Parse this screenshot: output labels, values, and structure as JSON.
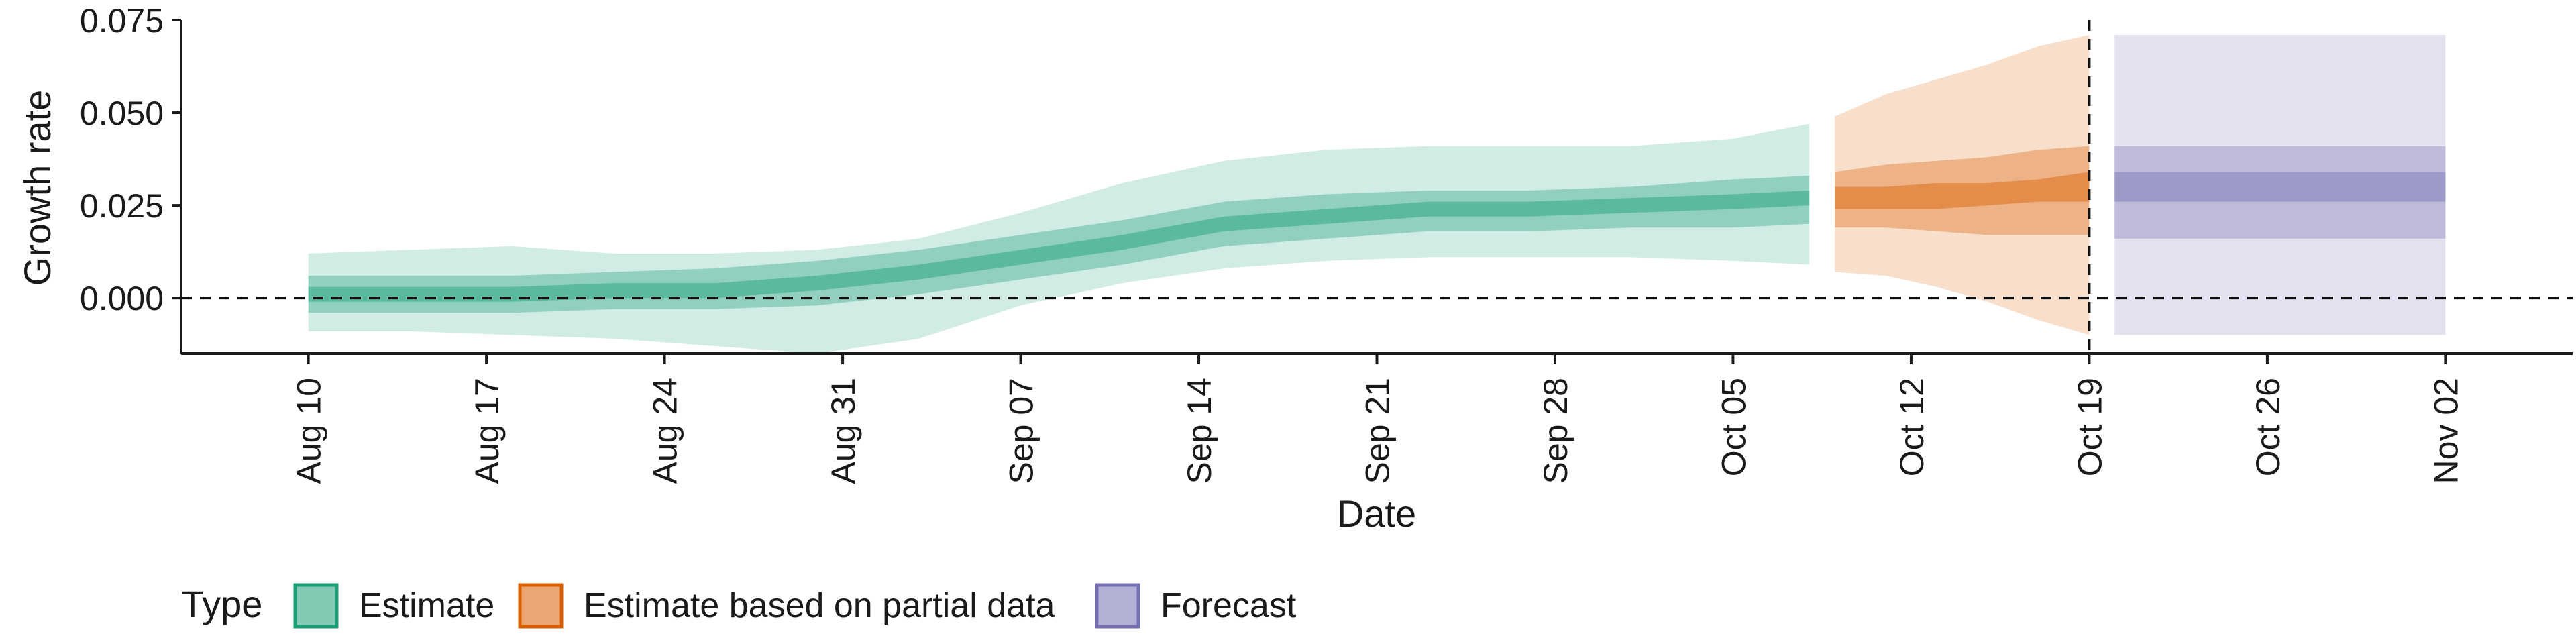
{
  "chart_data": {
    "type": "area",
    "xlabel": "Date",
    "ylabel": "Growth rate",
    "ylim": [
      -0.015,
      0.075
    ],
    "xlim": [
      "2020-08-05",
      "2020-11-07"
    ],
    "y_ticks": [
      0.0,
      0.025,
      0.05,
      0.075
    ],
    "y_tick_labels": [
      "0.000",
      "0.025",
      "0.050",
      "0.075"
    ],
    "x_ticks": [
      "2020-08-10",
      "2020-08-17",
      "2020-08-24",
      "2020-08-31",
      "2020-09-07",
      "2020-09-14",
      "2020-09-21",
      "2020-09-28",
      "2020-10-05",
      "2020-10-12",
      "2020-10-19",
      "2020-10-26",
      "2020-11-02"
    ],
    "x_tick_labels": [
      "Aug 10",
      "Aug 17",
      "Aug 24",
      "Aug 31",
      "Sep 07",
      "Sep 14",
      "Sep 21",
      "Sep 28",
      "Oct 05",
      "Oct 12",
      "Oct 19",
      "Oct 26",
      "Nov 02"
    ],
    "reference_lines": [
      {
        "axis": "y",
        "value": 0.0,
        "style": "dashed"
      },
      {
        "axis": "x",
        "value": "2020-10-19",
        "style": "dashed"
      }
    ],
    "grid": false,
    "legend": {
      "title": "Type",
      "position": "bottom-left"
    },
    "series": [
      {
        "name": "Estimate",
        "color": "#1b9e77",
        "x": [
          "2020-08-10",
          "2020-08-14",
          "2020-08-18",
          "2020-08-22",
          "2020-08-26",
          "2020-08-30",
          "2020-09-03",
          "2020-09-07",
          "2020-09-11",
          "2020-09-15",
          "2020-09-19",
          "2020-09-23",
          "2020-09-27",
          "2020-10-01",
          "2020-10-05",
          "2020-10-08"
        ],
        "median": [
          0.001,
          0.001,
          0.001,
          0.002,
          0.002,
          0.004,
          0.007,
          0.011,
          0.015,
          0.02,
          0.022,
          0.024,
          0.024,
          0.025,
          0.026,
          0.027
        ],
        "inner_lower": [
          -0.001,
          -0.001,
          -0.001,
          0.0,
          0.0,
          0.002,
          0.005,
          0.009,
          0.013,
          0.018,
          0.02,
          0.022,
          0.022,
          0.023,
          0.024,
          0.025
        ],
        "inner_upper": [
          0.003,
          0.003,
          0.003,
          0.004,
          0.004,
          0.006,
          0.009,
          0.013,
          0.017,
          0.022,
          0.024,
          0.026,
          0.026,
          0.027,
          0.028,
          0.029
        ],
        "mid_lower": [
          -0.004,
          -0.004,
          -0.004,
          -0.003,
          -0.003,
          -0.002,
          0.001,
          0.005,
          0.009,
          0.014,
          0.016,
          0.018,
          0.018,
          0.019,
          0.019,
          0.02
        ],
        "mid_upper": [
          0.006,
          0.006,
          0.006,
          0.007,
          0.008,
          0.01,
          0.013,
          0.017,
          0.021,
          0.026,
          0.028,
          0.029,
          0.029,
          0.03,
          0.032,
          0.033
        ],
        "outer_lower": [
          -0.009,
          -0.009,
          -0.01,
          -0.011,
          -0.013,
          -0.015,
          -0.011,
          -0.002,
          0.004,
          0.008,
          0.01,
          0.011,
          0.011,
          0.011,
          0.01,
          0.009
        ],
        "outer_upper": [
          0.012,
          0.013,
          0.014,
          0.012,
          0.012,
          0.013,
          0.016,
          0.023,
          0.031,
          0.037,
          0.04,
          0.041,
          0.041,
          0.041,
          0.043,
          0.047
        ]
      },
      {
        "name": "Estimate based on partial data",
        "color": "#d95f02",
        "x": [
          "2020-10-09",
          "2020-10-11",
          "2020-10-13",
          "2020-10-15",
          "2020-10-17",
          "2020-10-19"
        ],
        "median": [
          0.027,
          0.027,
          0.028,
          0.028,
          0.029,
          0.03
        ],
        "inner_lower": [
          0.024,
          0.024,
          0.024,
          0.025,
          0.026,
          0.026
        ],
        "inner_upper": [
          0.03,
          0.03,
          0.031,
          0.031,
          0.032,
          0.034
        ],
        "mid_lower": [
          0.019,
          0.019,
          0.018,
          0.017,
          0.017,
          0.017
        ],
        "mid_upper": [
          0.034,
          0.036,
          0.037,
          0.038,
          0.04,
          0.041
        ],
        "outer_lower": [
          0.007,
          0.006,
          0.003,
          -0.001,
          -0.006,
          -0.01
        ],
        "outer_upper": [
          0.049,
          0.055,
          0.059,
          0.063,
          0.068,
          0.071
        ]
      },
      {
        "name": "Forecast",
        "color": "#7570b3",
        "x": [
          "2020-10-20",
          "2020-11-02"
        ],
        "median": [
          0.03,
          0.03
        ],
        "inner_lower": [
          0.026,
          0.026
        ],
        "inner_upper": [
          0.034,
          0.034
        ],
        "mid_lower": [
          0.016,
          0.016
        ],
        "mid_upper": [
          0.041,
          0.041
        ],
        "outer_lower": [
          -0.01,
          -0.01
        ],
        "outer_upper": [
          0.071,
          0.071
        ]
      }
    ]
  }
}
